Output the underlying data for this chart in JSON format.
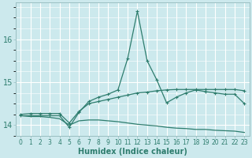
{
  "xlabel": "Humidex (Indice chaleur)",
  "ylabel": "",
  "bg_color": "#cce9ed",
  "line_color": "#2e7d6e",
  "grid_color": "#ffffff",
  "xlim": [
    -0.5,
    23.5
  ],
  "ylim": [
    13.75,
    16.85
  ],
  "yticks": [
    14,
    15,
    16
  ],
  "xticks": [
    0,
    1,
    2,
    3,
    4,
    5,
    6,
    7,
    8,
    9,
    10,
    11,
    12,
    13,
    14,
    15,
    16,
    17,
    18,
    19,
    20,
    21,
    22,
    23
  ],
  "line_peaked_x": [
    0,
    1,
    2,
    3,
    4,
    5,
    6,
    7,
    8,
    9,
    10,
    11,
    12,
    13,
    14,
    15,
    16,
    17,
    18,
    19,
    20,
    21,
    22,
    23
  ],
  "line_peaked_y": [
    14.22,
    14.22,
    14.22,
    14.22,
    14.22,
    13.95,
    14.3,
    14.55,
    14.65,
    14.72,
    14.82,
    15.55,
    16.65,
    15.5,
    15.05,
    14.52,
    14.65,
    14.75,
    14.82,
    14.78,
    14.75,
    14.72,
    14.72,
    14.5
  ],
  "line_mid_x": [
    0,
    1,
    2,
    3,
    4,
    5,
    6,
    7,
    8,
    9,
    10,
    11,
    12,
    13,
    14,
    15,
    16,
    17,
    18,
    19,
    20,
    21,
    22,
    23
  ],
  "line_mid_y": [
    14.25,
    14.27,
    14.27,
    14.27,
    14.27,
    14.05,
    14.32,
    14.5,
    14.55,
    14.6,
    14.65,
    14.7,
    14.75,
    14.77,
    14.8,
    14.82,
    14.83,
    14.83,
    14.83,
    14.83,
    14.83,
    14.83,
    14.83,
    14.8
  ],
  "line_low_x": [
    0,
    1,
    2,
    3,
    4,
    5,
    6,
    7,
    8,
    9,
    10,
    11,
    12,
    13,
    14,
    15,
    16,
    17,
    18,
    19,
    20,
    21,
    22,
    23
  ],
  "line_low_y": [
    14.22,
    14.2,
    14.2,
    14.18,
    14.15,
    14.0,
    14.1,
    14.12,
    14.12,
    14.1,
    14.08,
    14.05,
    14.02,
    14.0,
    13.98,
    13.95,
    13.93,
    13.92,
    13.9,
    13.9,
    13.88,
    13.87,
    13.86,
    13.83
  ]
}
